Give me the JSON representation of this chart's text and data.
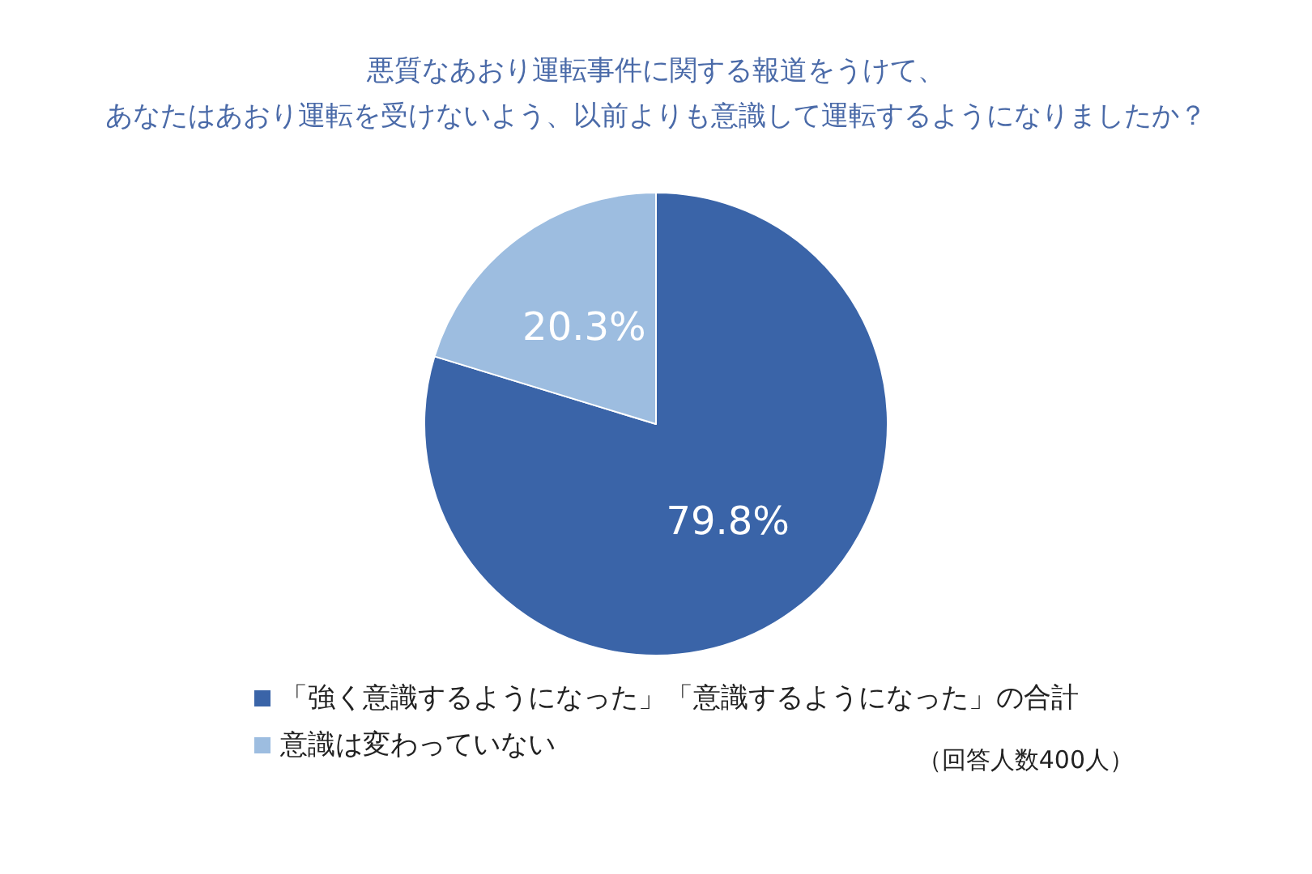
{
  "chart_data": {
    "type": "pie",
    "title": "悪質なあおり運転事件に関する報道をうけて、",
    "subtitle": "あなたはあおり運転を受けないよう、以前よりも意識して運転するようになりましたか？",
    "categories": [
      "「強く意識するようになった」「意識するようになった」の合計",
      "意識は変わっていない"
    ],
    "values": [
      79.8,
      20.3
    ],
    "value_labels": [
      "79.8%",
      "20.3%"
    ],
    "colors": [
      "#3a64a8",
      "#9dbde0"
    ],
    "legend": "bottom",
    "annotations": [
      "（回答人数400人）"
    ]
  }
}
